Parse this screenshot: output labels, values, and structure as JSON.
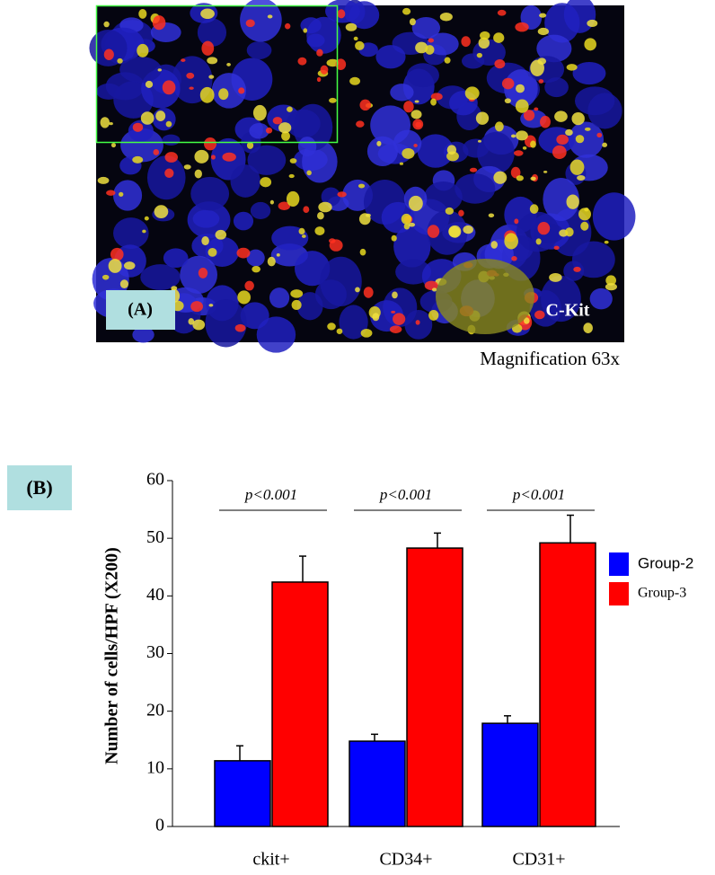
{
  "panel_a": {
    "label": "(A)",
    "stain": "C-Kit",
    "caption": "Magnification 63x"
  },
  "chart_data": {
    "type": "bar",
    "panel_label": "(B)",
    "ylabel": "Number of cells/HPF (X200)",
    "categories": [
      "ckit+",
      "CD34+",
      "CD31+"
    ],
    "series": [
      {
        "name": "Group-2",
        "color": "#0000ff",
        "values": [
          11.4,
          14.8,
          17.9
        ],
        "errors": [
          2.6,
          1.2,
          1.3
        ]
      },
      {
        "name": "Group-3",
        "color": "#ff0000",
        "values": [
          42.4,
          48.3,
          49.2
        ],
        "errors": [
          4.5,
          2.6,
          4.8
        ]
      }
    ],
    "annotations": [
      "p<0.001",
      "p<0.001",
      "p<0.001"
    ],
    "ylim": [
      0,
      60
    ],
    "yticks": [
      0,
      10,
      20,
      30,
      40,
      50,
      60
    ],
    "legend": "right"
  }
}
